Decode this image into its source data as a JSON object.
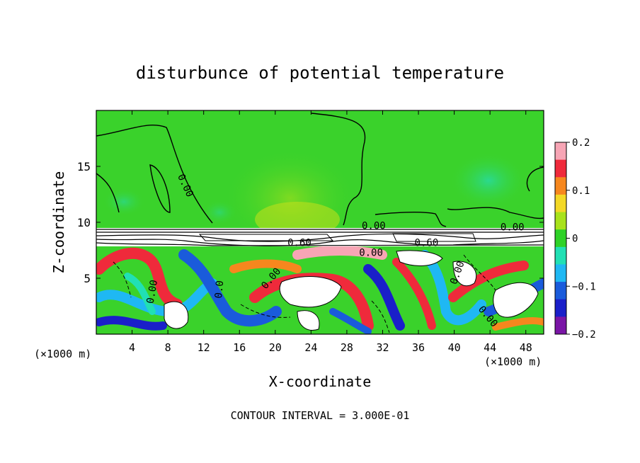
{
  "chart_data": {
    "type": "heatmap",
    "title": "disturbunce of potential temperature",
    "xlabel": "X-coordinate",
    "ylabel": "Z-coordinate",
    "x_unit_label": "(×1000 m)",
    "x_unit_label_right": "(×1000 m)",
    "xlim": [
      0,
      50
    ],
    "ylim": [
      0,
      20
    ],
    "x_ticks": [
      4,
      8,
      12,
      16,
      20,
      24,
      28,
      32,
      36,
      40,
      44,
      48
    ],
    "y_ticks": [
      5,
      10,
      15
    ],
    "colorbar": {
      "min": -0.2,
      "max": 0.2,
      "ticks": [
        0.2,
        0.1,
        0,
        -0.1,
        -0.2
      ],
      "tick_labels": [
        "0.2",
        "0.1",
        "0",
        "−0.1",
        "−0.2"
      ],
      "colors": [
        "#f7a5b5",
        "#ef2a3b",
        "#f6871e",
        "#f3d826",
        "#a8e21b",
        "#2ed227",
        "#21e0b4",
        "#1fb8f3",
        "#1a5bdb",
        "#1a1fc9",
        "#7a15a6"
      ]
    },
    "contour_labels": [
      {
        "text": "0.00",
        "x": 10.0,
        "y": 13.3
      },
      {
        "text": "0.00",
        "x": 31.0,
        "y": 9.7
      },
      {
        "text": "0.60",
        "x": 22.7,
        "y": 8.2
      },
      {
        "text": "0.60",
        "x": 36.9,
        "y": 8.2
      },
      {
        "text": "0.00",
        "x": 30.7,
        "y": 7.3
      },
      {
        "text": "0.00",
        "x": 46.5,
        "y": 9.6
      },
      {
        "text": "0.00",
        "x": 6.2,
        "y": 3.8
      },
      {
        "text": "0.0",
        "x": 13.7,
        "y": 4.0
      },
      {
        "text": "0.00",
        "x": 19.5,
        "y": 5.0
      },
      {
        "text": "0.00",
        "x": 40.3,
        "y": 5.5
      },
      {
        "text": "0.00",
        "x": 43.8,
        "y": 1.6
      }
    ],
    "contour_interval_text": "CONTOUR INTERVAL = 3.000E-01"
  }
}
